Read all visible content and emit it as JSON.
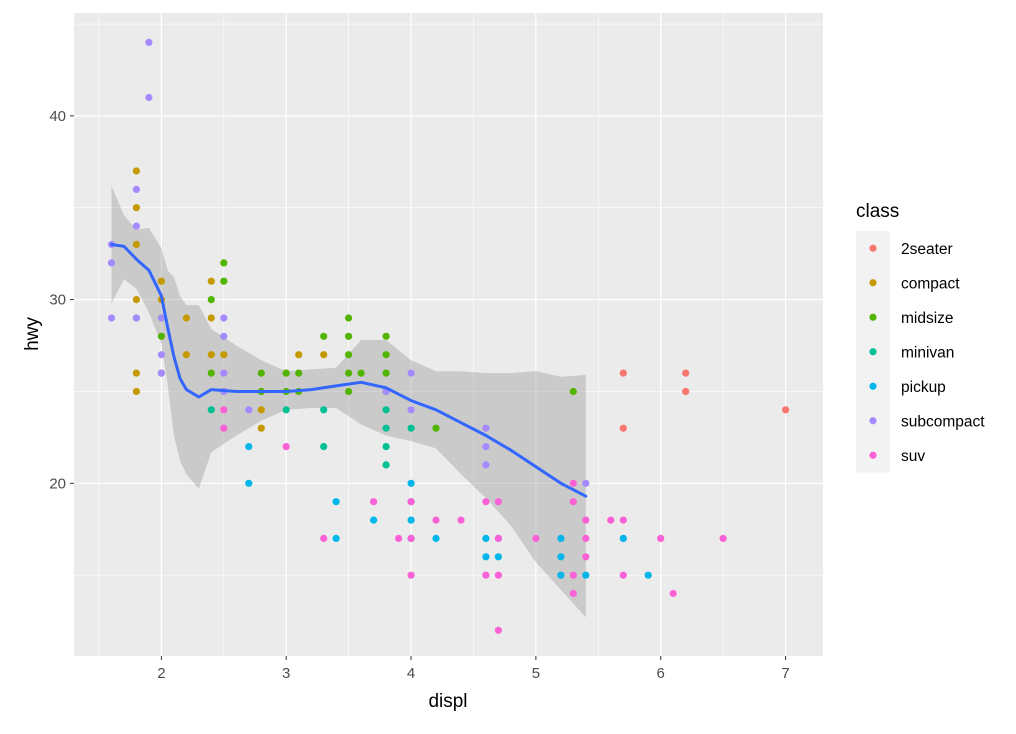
{
  "chart_data": {
    "type": "scatter",
    "xlabel": "displ",
    "ylabel": "hwy",
    "xlim": [
      1.3,
      7.3
    ],
    "ylim": [
      10.6,
      45.6
    ],
    "x_ticks": [
      2,
      3,
      4,
      5,
      6,
      7
    ],
    "y_ticks": [
      20,
      30,
      40
    ],
    "x_tick_labels": [
      "2",
      "3",
      "4",
      "5",
      "6",
      "7"
    ],
    "y_tick_labels": [
      "20",
      "30",
      "40"
    ],
    "grid": true,
    "legend": {
      "title": "class",
      "position": "right"
    },
    "series": [
      {
        "name": "2seater",
        "color": "#F8766D",
        "x": [
          5.7,
          5.7,
          6.2,
          6.2,
          7.0
        ],
        "y": [
          26,
          23,
          26,
          25,
          24
        ]
      },
      {
        "name": "compact",
        "color": "#C49A00",
        "x": [
          1.8,
          1.8,
          1.8,
          1.8,
          1.8,
          1.8,
          2.0,
          2.0,
          2.2,
          2.2,
          2.4,
          2.4,
          2.4,
          2.5,
          2.5,
          2.8,
          2.8,
          2.8,
          3.0,
          3.1,
          3.3
        ],
        "y": [
          37,
          35,
          33,
          30,
          26,
          25,
          31,
          30,
          29,
          27,
          31,
          29,
          27,
          27,
          25,
          25,
          24,
          23,
          26,
          27,
          27
        ]
      },
      {
        "name": "midsize",
        "color": "#53B400",
        "x": [
          1.8,
          2.0,
          2.0,
          2.0,
          2.4,
          2.4,
          2.5,
          2.5,
          2.8,
          2.8,
          3.0,
          3.0,
          3.1,
          3.1,
          3.3,
          3.5,
          3.5,
          3.5,
          3.5,
          3.5,
          3.6,
          3.8,
          3.8,
          3.8,
          3.8,
          4.2,
          5.3
        ],
        "y": [
          29,
          29,
          28,
          26,
          30,
          26,
          32,
          31,
          26,
          25,
          26,
          25,
          26,
          25,
          28,
          29,
          28,
          27,
          26,
          25,
          26,
          28,
          27,
          26,
          25,
          23,
          25
        ]
      },
      {
        "name": "minivan",
        "color": "#00C094",
        "x": [
          2.4,
          3.0,
          3.3,
          3.3,
          3.8,
          3.8,
          3.8,
          3.8,
          4.0
        ],
        "y": [
          24,
          24,
          24,
          22,
          23,
          22,
          21,
          24,
          23
        ]
      },
      {
        "name": "pickup",
        "color": "#00B6EB",
        "x": [
          2.7,
          2.7,
          3.4,
          3.4,
          3.7,
          4.0,
          4.0,
          4.0,
          4.0,
          4.2,
          4.6,
          4.6,
          4.7,
          4.7,
          5.2,
          5.2,
          5.2,
          5.4,
          5.7,
          5.9
        ],
        "y": [
          22,
          20,
          19,
          17,
          18,
          20,
          19,
          18,
          17,
          17,
          17,
          16,
          17,
          16,
          17,
          16,
          15,
          15,
          17,
          15
        ]
      },
      {
        "name": "subcompact",
        "color": "#A58AFF",
        "x": [
          1.6,
          1.6,
          1.6,
          1.8,
          1.8,
          1.8,
          1.9,
          1.9,
          2.0,
          2.0,
          2.0,
          2.5,
          2.5,
          2.5,
          2.5,
          2.7,
          3.8,
          4.0,
          4.0,
          4.6,
          4.6,
          4.6,
          5.4
        ],
        "y": [
          33,
          32,
          29,
          36,
          34,
          29,
          44,
          41,
          27,
          26,
          29,
          29,
          28,
          26,
          25,
          24,
          25,
          26,
          24,
          23,
          22,
          21,
          20
        ]
      },
      {
        "name": "suv",
        "color": "#FB61D7",
        "x": [
          2.5,
          2.5,
          3.0,
          3.3,
          3.7,
          3.9,
          4.0,
          4.0,
          4.0,
          4.2,
          4.4,
          4.6,
          4.6,
          4.7,
          4.7,
          4.7,
          4.7,
          5.0,
          5.3,
          5.3,
          5.3,
          5.3,
          5.4,
          5.4,
          5.4,
          5.6,
          5.7,
          5.7,
          6.0,
          6.1,
          6.5
        ],
        "y": [
          24,
          23,
          22,
          17,
          19,
          17,
          19,
          17,
          15,
          18,
          18,
          19,
          15,
          19,
          17,
          15,
          12,
          17,
          20,
          19,
          15,
          14,
          18,
          17,
          16,
          18,
          18,
          15,
          17,
          14,
          17
        ]
      }
    ],
    "smooth": {
      "method": "loess",
      "color": "#3366FF",
      "se_fill": "#999999",
      "x": [
        1.6,
        1.7,
        1.8,
        1.9,
        2.0,
        2.05,
        2.1,
        2.15,
        2.2,
        2.3,
        2.4,
        2.6,
        2.8,
        3.0,
        3.2,
        3.4,
        3.6,
        3.8,
        4.0,
        4.2,
        4.4,
        4.6,
        4.8,
        5.0,
        5.2,
        5.4
      ],
      "y": [
        33.0,
        32.9,
        32.2,
        31.6,
        30.2,
        28.5,
        26.9,
        25.7,
        25.1,
        24.7,
        25.1,
        25.0,
        25.0,
        25.0,
        25.1,
        25.3,
        25.5,
        25.2,
        24.5,
        24.0,
        23.3,
        22.6,
        21.8,
        20.9,
        20.0,
        19.3
      ],
      "ymin": [
        29.8,
        31.1,
        30.6,
        29.3,
        27.6,
        25.4,
        22.6,
        21.2,
        20.5,
        19.7,
        21.7,
        22.6,
        23.4,
        24.0,
        24.1,
        24.1,
        23.2,
        22.6,
        22.3,
        21.9,
        20.5,
        19.2,
        17.7,
        15.7,
        14.2,
        12.7
      ],
      "ymax": [
        36.2,
        34.6,
        33.8,
        33.9,
        32.8,
        31.6,
        31.2,
        30.2,
        29.7,
        29.7,
        28.4,
        27.5,
        26.7,
        26.1,
        26.2,
        26.3,
        27.8,
        27.8,
        26.7,
        26.1,
        26.1,
        26.0,
        26.0,
        26.1,
        25.8,
        25.9
      ]
    }
  }
}
